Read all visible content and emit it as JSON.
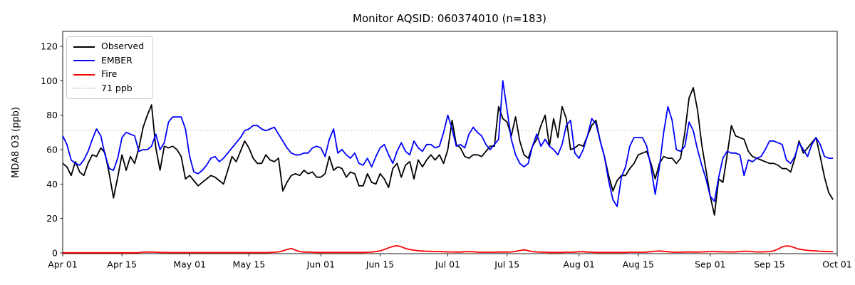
{
  "figure": {
    "background": "#ffffff"
  },
  "legend": {
    "items": [
      {
        "label": "Observed",
        "color": "#000000",
        "style": "solid"
      },
      {
        "label": "EMBER",
        "color": "#0000ff",
        "style": "solid"
      },
      {
        "label": "Fire",
        "color": "#ff0000",
        "style": "solid"
      },
      {
        "label": "71 ppb",
        "color": "#d3d3d3",
        "style": "dotted"
      }
    ]
  },
  "chart_data": {
    "type": "line",
    "title": "Monitor AQSID: 060374010 (n=183)",
    "ylabel": "MDA8 O3 (ppb)",
    "xlabel": "",
    "grid": false,
    "legend_position": "upper left",
    "ylim": [
      0,
      129
    ],
    "yticks": [
      0,
      20,
      40,
      60,
      80,
      100,
      120
    ],
    "x_axis": {
      "unit": "daily dates",
      "start": "Apr 01",
      "end": "Oct 01",
      "n_days": 183,
      "ticks": [
        {
          "label": "Apr 01",
          "day": 0
        },
        {
          "label": "Apr 15",
          "day": 14
        },
        {
          "label": "May 01",
          "day": 30
        },
        {
          "label": "May 15",
          "day": 44
        },
        {
          "label": "Jun 01",
          "day": 61
        },
        {
          "label": "Jun 15",
          "day": 75
        },
        {
          "label": "Jul 01",
          "day": 91
        },
        {
          "label": "Jul 15",
          "day": 105
        },
        {
          "label": "Aug 01",
          "day": 122
        },
        {
          "label": "Aug 15",
          "day": 136
        },
        {
          "label": "Sep 01",
          "day": 153
        },
        {
          "label": "Sep 15",
          "day": 167
        },
        {
          "label": "Oct 01",
          "day": 183
        }
      ]
    },
    "threshold": {
      "value": 71,
      "label": "71 ppb",
      "color": "#d3d3d3",
      "style": "dotted"
    },
    "series": [
      {
        "name": "Observed",
        "color": "#000000",
        "values": [
          52,
          50,
          45,
          53,
          47,
          45,
          52,
          57,
          56,
          61,
          58,
          46,
          32,
          44,
          57,
          48,
          56,
          52,
          61,
          73,
          80,
          86,
          61,
          48,
          62,
          61,
          62,
          60,
          56,
          43,
          45,
          42,
          39,
          41,
          43,
          45,
          44,
          42,
          40,
          48,
          56,
          53,
          59,
          65,
          61,
          55,
          52,
          52,
          57,
          54,
          53,
          55,
          36,
          41,
          45,
          46,
          45,
          48,
          46,
          47,
          44,
          44,
          46,
          56,
          48,
          50,
          49,
          44,
          47,
          46,
          39,
          39,
          46,
          41,
          40,
          46,
          43,
          38,
          49,
          52,
          44,
          51,
          53,
          43,
          54,
          50,
          54,
          57,
          54,
          57,
          52,
          60,
          77,
          63,
          61,
          56,
          55,
          57,
          57,
          56,
          59,
          62,
          62,
          85,
          78,
          76,
          68,
          79,
          65,
          57,
          55,
          62,
          66,
          74,
          80,
          62,
          78,
          67,
          85,
          78,
          60,
          61,
          63,
          62,
          68,
          74,
          77,
          65,
          56,
          45,
          36,
          42,
          45,
          45,
          49,
          52,
          57,
          58,
          59,
          52,
          43,
          52,
          56,
          55,
          55,
          52,
          55,
          70,
          90,
          96,
          83,
          63,
          48,
          33,
          22,
          43,
          41,
          57,
          74,
          68,
          67,
          66,
          59,
          56,
          55,
          54,
          53,
          52,
          52,
          51,
          49,
          49,
          47,
          55,
          65,
          58,
          61,
          64,
          67,
          56,
          44,
          35,
          31
        ]
      },
      {
        "name": "EMBER",
        "color": "#0000ff",
        "values": [
          68,
          63,
          54,
          52,
          51,
          54,
          59,
          66,
          72,
          68,
          57,
          49,
          48,
          55,
          67,
          70,
          69,
          68,
          59,
          60,
          60,
          62,
          69,
          60,
          64,
          76,
          79,
          79,
          79,
          72,
          56,
          47,
          46,
          48,
          51,
          55,
          56,
          53,
          55,
          58,
          61,
          64,
          67,
          71,
          72,
          74,
          74,
          72,
          71,
          72,
          73,
          69,
          65,
          61,
          58,
          57,
          57,
          58,
          58,
          61,
          62,
          61,
          56,
          66,
          72,
          58,
          60,
          57,
          55,
          58,
          52,
          51,
          55,
          50,
          56,
          61,
          63,
          57,
          52,
          59,
          64,
          59,
          57,
          65,
          61,
          59,
          63,
          63,
          61,
          62,
          70,
          80,
          72,
          62,
          63,
          61,
          69,
          73,
          70,
          68,
          63,
          60,
          63,
          66,
          100,
          83,
          66,
          57,
          52,
          50,
          52,
          62,
          69,
          62,
          66,
          62,
          60,
          57,
          63,
          74,
          77,
          58,
          55,
          60,
          68,
          78,
          75,
          65,
          56,
          42,
          31,
          27,
          44,
          50,
          62,
          67,
          67,
          67,
          62,
          50,
          34,
          50,
          70,
          85,
          77,
          60,
          59,
          62,
          76,
          71,
          60,
          51,
          43,
          33,
          30,
          44,
          55,
          59,
          58,
          58,
          57,
          45,
          54,
          53,
          55,
          56,
          60,
          65,
          65,
          64,
          63,
          54,
          52,
          56,
          64,
          60,
          56,
          63,
          67,
          63,
          56,
          55,
          55
        ]
      },
      {
        "name": "Fire",
        "color": "#ff0000",
        "values": [
          0.1,
          0.1,
          0.1,
          0.1,
          0.1,
          0.1,
          0.1,
          0.1,
          0.1,
          0.1,
          0.1,
          0.1,
          0.1,
          0.1,
          0.1,
          0.1,
          0.1,
          0.1,
          0.2,
          0.4,
          0.5,
          0.5,
          0.4,
          0.3,
          0.3,
          0.2,
          0.2,
          0.2,
          0.2,
          0.2,
          0.2,
          0.2,
          0.2,
          0.2,
          0.2,
          0.2,
          0.2,
          0.2,
          0.2,
          0.2,
          0.2,
          0.2,
          0.2,
          0.2,
          0.2,
          0.2,
          0.2,
          0.2,
          0.2,
          0.3,
          0.4,
          0.6,
          1.2,
          2.0,
          2.6,
          1.6,
          0.8,
          0.5,
          0.5,
          0.4,
          0.3,
          0.3,
          0.3,
          0.3,
          0.3,
          0.3,
          0.3,
          0.3,
          0.3,
          0.3,
          0.3,
          0.3,
          0.4,
          0.5,
          0.8,
          1.2,
          2.0,
          3.0,
          3.8,
          4.2,
          3.6,
          2.6,
          2.0,
          1.6,
          1.3,
          1.1,
          1.0,
          0.9,
          0.8,
          0.8,
          0.7,
          0.6,
          0.6,
          0.5,
          0.5,
          0.7,
          0.8,
          0.7,
          0.5,
          0.4,
          0.4,
          0.4,
          0.4,
          0.5,
          0.5,
          0.5,
          0.6,
          0.9,
          1.4,
          1.8,
          1.3,
          0.8,
          0.6,
          0.4,
          0.4,
          0.3,
          0.3,
          0.3,
          0.3,
          0.4,
          0.4,
          0.5,
          0.7,
          0.7,
          0.5,
          0.4,
          0.3,
          0.3,
          0.3,
          0.3,
          0.3,
          0.3,
          0.3,
          0.3,
          0.4,
          0.4,
          0.4,
          0.4,
          0.5,
          0.7,
          1.0,
          1.1,
          0.9,
          0.7,
          0.5,
          0.4,
          0.4,
          0.5,
          0.6,
          0.5,
          0.5,
          0.6,
          0.7,
          0.8,
          0.8,
          0.7,
          0.7,
          0.6,
          0.6,
          0.6,
          0.8,
          1.0,
          1.0,
          0.8,
          0.6,
          0.6,
          0.7,
          0.8,
          1.2,
          2.2,
          3.5,
          4.1,
          3.8,
          3.0,
          2.2,
          1.8,
          1.5,
          1.3,
          1.2,
          1.0,
          0.9,
          0.8,
          0.7
        ]
      }
    ]
  }
}
